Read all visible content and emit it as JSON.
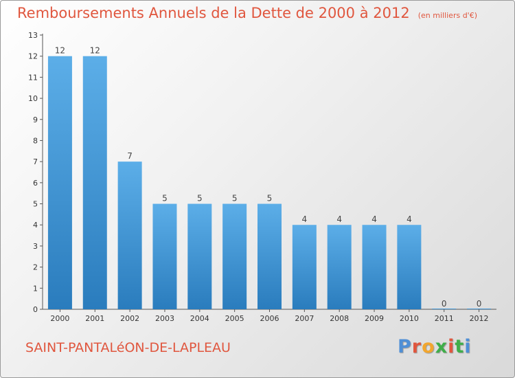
{
  "header": {
    "title": "Remboursements Annuels de la Dette de 2000 à 2012",
    "unit": "(en milliers d'€)"
  },
  "footer": {
    "commune": "SAINT-PANTALéON-DE-LAPLEAU",
    "logo": "Proxiti"
  },
  "colors": {
    "title": "#e0563e",
    "bar_top": "#5caee8",
    "bar_bottom": "#2a7cbd",
    "logo_letters": [
      "#4f8fd6",
      "#e0563e",
      "#f2a62e",
      "#3fae49",
      "#e0563e",
      "#3fae49",
      "#4f8fd6"
    ]
  },
  "chart_data": {
    "type": "bar",
    "title": "Remboursements Annuels de la Dette de 2000 à 2012",
    "xlabel": "",
    "ylabel": "(en milliers d'€)",
    "categories": [
      "2000",
      "2001",
      "2002",
      "2003",
      "2004",
      "2005",
      "2006",
      "2007",
      "2008",
      "2009",
      "2010",
      "2011",
      "2012"
    ],
    "values": [
      12,
      12,
      7,
      5,
      5,
      5,
      5,
      4,
      4,
      4,
      4,
      0,
      0
    ],
    "data_labels": [
      "12",
      "12",
      "7",
      "5",
      "5",
      "5",
      "5",
      "4",
      "4",
      "4",
      "4",
      "0",
      "0"
    ],
    "yticks": [
      0,
      1,
      2,
      3,
      4,
      5,
      6,
      7,
      8,
      9,
      10,
      11,
      12,
      13
    ],
    "ylim": [
      0,
      13
    ],
    "grid": false
  }
}
